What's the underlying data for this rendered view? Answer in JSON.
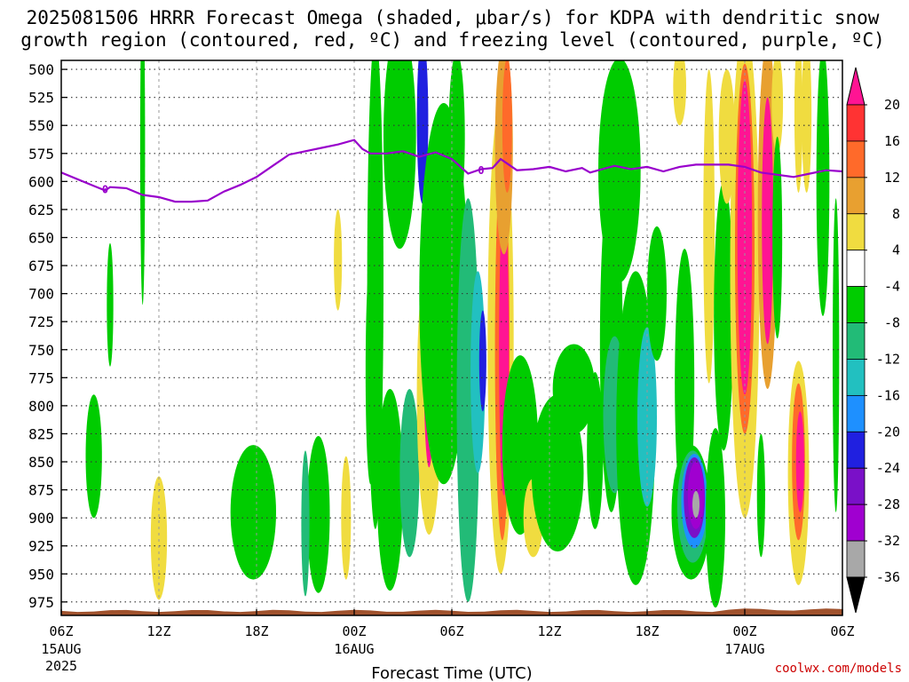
{
  "title_line1": "2025081506 HRRR Forecast Omega (shaded, μbar/s) for KDPA with dendritic snow",
  "title_line2": "growth region (contoured, red, ºC) and freezing level (contoured, purple, ºC)",
  "watermark": "coolwx.com/models",
  "colors": {
    "freezing_line": "#9900cc",
    "terrain": "#a0522d",
    "grid": "#777777"
  },
  "chart_data": {
    "type": "heatmap",
    "title": "2025081506 HRRR Forecast Omega (shaded, μbar/s) for KDPA with dendritic snow growth region (contoured, red, ºC) and freezing level (contoured, purple, ºC)",
    "xlabel": "Forecast Time (UTC)",
    "ylabel": "",
    "xlim": [
      0,
      48
    ],
    "ylim": [
      987,
      492
    ],
    "y_ticks": [
      500,
      525,
      550,
      575,
      600,
      625,
      650,
      675,
      700,
      725,
      750,
      775,
      800,
      825,
      850,
      875,
      900,
      925,
      950,
      975
    ],
    "x_ticks": [
      {
        "hour": 0,
        "label": "06Z",
        "sub1": "15AUG",
        "sub2": "2025"
      },
      {
        "hour": 6,
        "label": "12Z",
        "sub1": "",
        "sub2": ""
      },
      {
        "hour": 12,
        "label": "18Z",
        "sub1": "",
        "sub2": ""
      },
      {
        "hour": 18,
        "label": "00Z",
        "sub1": "16AUG",
        "sub2": ""
      },
      {
        "hour": 24,
        "label": "06Z",
        "sub1": "",
        "sub2": ""
      },
      {
        "hour": 30,
        "label": "12Z",
        "sub1": "",
        "sub2": ""
      },
      {
        "hour": 36,
        "label": "18Z",
        "sub1": "",
        "sub2": ""
      },
      {
        "hour": 42,
        "label": "00Z",
        "sub1": "17AUG",
        "sub2": ""
      },
      {
        "hour": 48,
        "label": "06Z",
        "sub1": "",
        "sub2": ""
      }
    ],
    "colorbar": {
      "labels": [
        "20",
        "16",
        "12",
        "8",
        "4",
        "-4",
        "-8",
        "-12",
        "-16",
        "-20",
        "-24",
        "-28",
        "-32",
        "-36"
      ],
      "levels": [
        {
          "lo": 20,
          "hi": 24,
          "color": "#ff1493"
        },
        {
          "lo": 16,
          "hi": 20,
          "color": "#ff3333"
        },
        {
          "lo": 12,
          "hi": 16,
          "color": "#ff6a2a"
        },
        {
          "lo": 8,
          "hi": 12,
          "color": "#e8a030"
        },
        {
          "lo": 4,
          "hi": 8,
          "color": "#f0dc40"
        },
        {
          "lo": -4,
          "hi": 4,
          "color": "#ffffff"
        },
        {
          "lo": -8,
          "hi": -4,
          "color": "#00cc00"
        },
        {
          "lo": -12,
          "hi": -8,
          "color": "#22bb77"
        },
        {
          "lo": -16,
          "hi": -12,
          "color": "#22c0c0"
        },
        {
          "lo": -20,
          "hi": -16,
          "color": "#1e90ff"
        },
        {
          "lo": -24,
          "hi": -20,
          "color": "#2020e0"
        },
        {
          "lo": -28,
          "hi": -24,
          "color": "#7a10c8"
        },
        {
          "lo": -32,
          "hi": -28,
          "color": "#a000d0"
        },
        {
          "lo": -36,
          "hi": -32,
          "color": "#a8a8a8"
        }
      ]
    },
    "freezing_level": {
      "label": "0",
      "hours": [
        0,
        2,
        2.7,
        3,
        4,
        5,
        6,
        7,
        8,
        9,
        10,
        11,
        12,
        13,
        14,
        15,
        16,
        17,
        18,
        18.5,
        19,
        20,
        21,
        22,
        23,
        24,
        25,
        25.8,
        26.5,
        27,
        28,
        29,
        30,
        31,
        32,
        32.5,
        33,
        34,
        35,
        36,
        37,
        38,
        39,
        40,
        41,
        42,
        43,
        44,
        45,
        46,
        47,
        48
      ],
      "pressure": [
        592,
        604,
        608,
        605,
        606,
        612,
        614,
        618,
        618,
        617,
        609,
        603,
        596,
        586,
        576,
        573,
        570,
        567,
        563,
        571,
        575,
        575,
        573,
        578,
        574,
        580,
        593,
        589,
        588,
        580,
        590,
        589,
        587,
        591,
        588,
        592,
        590,
        586,
        589,
        587,
        591,
        587,
        585,
        585,
        585,
        587,
        592,
        594,
        596,
        593,
        590,
        591
      ]
    },
    "omega_cells": [
      {
        "t": 5.0,
        "p": 570,
        "sx": 0.15,
        "sy": 140,
        "v": -5
      },
      {
        "t": 3.0,
        "p": 710,
        "sx": 0.2,
        "sy": 55,
        "v": -5
      },
      {
        "t": 2.0,
        "p": 845,
        "sx": 0.5,
        "sy": 55,
        "v": -6
      },
      {
        "t": 6.0,
        "p": 918,
        "sx": 0.5,
        "sy": 55,
        "v": 6
      },
      {
        "t": 11.8,
        "p": 895,
        "sx": 1.4,
        "sy": 60,
        "v": -6
      },
      {
        "t": 15.8,
        "p": 897,
        "sx": 0.7,
        "sy": 70,
        "v": -7
      },
      {
        "t": 15.0,
        "p": 905,
        "sx": 0.25,
        "sy": 65,
        "v": -9.5
      },
      {
        "t": 17.5,
        "p": 900,
        "sx": 0.3,
        "sy": 55,
        "v": 5
      },
      {
        "t": 17.0,
        "p": 670,
        "sx": 0.25,
        "sy": 45,
        "v": 5
      },
      {
        "t": 19.3,
        "p": 690,
        "sx": 0.5,
        "sy": 220,
        "v": -6
      },
      {
        "t": 19.0,
        "p": 770,
        "sx": 0.3,
        "sy": 100,
        "v": -6
      },
      {
        "t": 20.2,
        "p": 875,
        "sx": 0.8,
        "sy": 90,
        "v": -6
      },
      {
        "t": 21.4,
        "p": 860,
        "sx": 0.6,
        "sy": 75,
        "v": -8.5
      },
      {
        "t": 20.8,
        "p": 560,
        "sx": 1.0,
        "sy": 100,
        "v": -6
      },
      {
        "t": 22.2,
        "p": 545,
        "sx": 0.35,
        "sy": 75,
        "v": -22
      },
      {
        "t": 22.6,
        "p": 790,
        "sx": 0.75,
        "sy": 125,
        "v": 6
      },
      {
        "t": 22.6,
        "p": 760,
        "sx": 0.33,
        "sy": 95,
        "v": 22
      },
      {
        "t": 23.5,
        "p": 700,
        "sx": 1.5,
        "sy": 170,
        "v": -6
      },
      {
        "t": 24.3,
        "p": 560,
        "sx": 0.5,
        "sy": 75,
        "v": -6
      },
      {
        "t": 25.0,
        "p": 795,
        "sx": 0.7,
        "sy": 180,
        "v": -9
      },
      {
        "t": 25.6,
        "p": 770,
        "sx": 0.45,
        "sy": 90,
        "v": -15
      },
      {
        "t": 25.9,
        "p": 760,
        "sx": 0.22,
        "sy": 45,
        "v": -24
      },
      {
        "t": 27.0,
        "p": 740,
        "sx": 0.8,
        "sy": 210,
        "v": 7
      },
      {
        "t": 27.1,
        "p": 750,
        "sx": 0.45,
        "sy": 170,
        "v": 12
      },
      {
        "t": 27.2,
        "p": 750,
        "sx": 0.3,
        "sy": 130,
        "v": 22
      },
      {
        "t": 27.2,
        "p": 570,
        "sx": 0.55,
        "sy": 95,
        "v": 9
      },
      {
        "t": 27.4,
        "p": 550,
        "sx": 0.3,
        "sy": 60,
        "v": 13
      },
      {
        "t": 28.2,
        "p": 835,
        "sx": 1.1,
        "sy": 80,
        "v": -6
      },
      {
        "t": 29.0,
        "p": 900,
        "sx": 0.6,
        "sy": 35,
        "v": 6
      },
      {
        "t": 30.5,
        "p": 860,
        "sx": 1.6,
        "sy": 70,
        "v": -6
      },
      {
        "t": 31.5,
        "p": 785,
        "sx": 1.3,
        "sy": 40,
        "v": -6
      },
      {
        "t": 34.3,
        "p": 590,
        "sx": 1.3,
        "sy": 100,
        "v": -6
      },
      {
        "t": 33.8,
        "p": 745,
        "sx": 0.7,
        "sy": 150,
        "v": -6
      },
      {
        "t": 32.8,
        "p": 840,
        "sx": 0.5,
        "sy": 70,
        "v": -6
      },
      {
        "t": 34.0,
        "p": 808,
        "sx": 0.7,
        "sy": 70,
        "v": -9
      },
      {
        "t": 35.0,
        "p": 880,
        "sx": 0.6,
        "sy": 60,
        "v": 6
      },
      {
        "t": 35.3,
        "p": 820,
        "sx": 1.2,
        "sy": 140,
        "v": -7.5
      },
      {
        "t": 36.0,
        "p": 810,
        "sx": 0.6,
        "sy": 80,
        "v": -14
      },
      {
        "t": 36.6,
        "p": 700,
        "sx": 0.6,
        "sy": 60,
        "v": -6
      },
      {
        "t": 38.3,
        "p": 780,
        "sx": 0.6,
        "sy": 120,
        "v": -6
      },
      {
        "t": 38.7,
        "p": 895,
        "sx": 1.2,
        "sy": 60,
        "v": -7
      },
      {
        "t": 38.8,
        "p": 890,
        "sx": 0.95,
        "sy": 50,
        "v": -12
      },
      {
        "t": 38.9,
        "p": 885,
        "sx": 0.8,
        "sy": 42,
        "v": -18
      },
      {
        "t": 38.9,
        "p": 882,
        "sx": 0.65,
        "sy": 36,
        "v": -26
      },
      {
        "t": 39.0,
        "p": 880,
        "sx": 0.5,
        "sy": 30,
        "v": -30.5
      },
      {
        "t": 39.0,
        "p": 888,
        "sx": 0.22,
        "sy": 12,
        "v": -33
      },
      {
        "t": 40.2,
        "p": 900,
        "sx": 0.6,
        "sy": 80,
        "v": -6
      },
      {
        "t": 38.0,
        "p": 515,
        "sx": 0.4,
        "sy": 35,
        "v": 5
      },
      {
        "t": 39.8,
        "p": 640,
        "sx": 0.35,
        "sy": 140,
        "v": 5
      },
      {
        "t": 40.7,
        "p": 720,
        "sx": 0.6,
        "sy": 120,
        "v": -6
      },
      {
        "t": 40.9,
        "p": 560,
        "sx": 0.5,
        "sy": 60,
        "v": 7
      },
      {
        "t": 42.0,
        "p": 680,
        "sx": 0.9,
        "sy": 220,
        "v": 7
      },
      {
        "t": 42.0,
        "p": 660,
        "sx": 0.6,
        "sy": 165,
        "v": 12
      },
      {
        "t": 42.0,
        "p": 650,
        "sx": 0.45,
        "sy": 140,
        "v": 22
      },
      {
        "t": 43.4,
        "p": 630,
        "sx": 0.6,
        "sy": 155,
        "v": 9
      },
      {
        "t": 43.4,
        "p": 635,
        "sx": 0.35,
        "sy": 110,
        "v": 22
      },
      {
        "t": 44.0,
        "p": 530,
        "sx": 0.35,
        "sy": 45,
        "v": 5
      },
      {
        "t": 44.0,
        "p": 650,
        "sx": 0.3,
        "sy": 90,
        "v": -6
      },
      {
        "t": 43.0,
        "p": 880,
        "sx": 0.25,
        "sy": 55,
        "v": -6
      },
      {
        "t": 45.3,
        "p": 540,
        "sx": 0.25,
        "sy": 70,
        "v": 5
      },
      {
        "t": 45.8,
        "p": 540,
        "sx": 0.3,
        "sy": 70,
        "v": 5
      },
      {
        "t": 45.3,
        "p": 860,
        "sx": 0.65,
        "sy": 100,
        "v": 7
      },
      {
        "t": 45.3,
        "p": 850,
        "sx": 0.4,
        "sy": 70,
        "v": 14
      },
      {
        "t": 45.4,
        "p": 850,
        "sx": 0.25,
        "sy": 45,
        "v": 22
      },
      {
        "t": 46.8,
        "p": 600,
        "sx": 0.4,
        "sy": 120,
        "v": -6
      },
      {
        "t": 47.6,
        "p": 755,
        "sx": 0.2,
        "sy": 140,
        "v": -6
      }
    ]
  }
}
